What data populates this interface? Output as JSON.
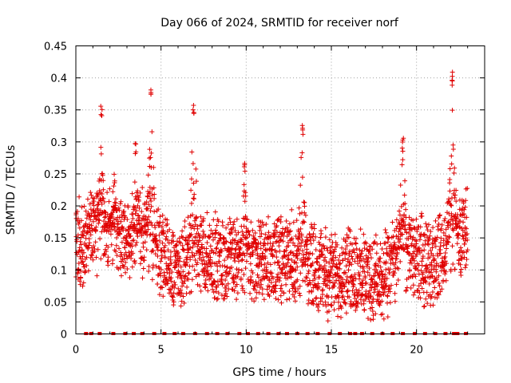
{
  "chart_data": {
    "type": "scatter",
    "title": "Day 066 of 2024, SRMTID for receiver norf",
    "xlabel": "GPS time / hours",
    "ylabel": "SRMTID / TECUs",
    "xlim": [
      0,
      24
    ],
    "ylim": [
      0,
      0.45
    ],
    "xticks": [
      0,
      5,
      10,
      15,
      20
    ],
    "xtick_labels": [
      "0",
      "5",
      "10",
      "15",
      "20"
    ],
    "yticks": [
      0,
      0.05,
      0.1,
      0.15,
      0.2,
      0.25,
      0.3,
      0.35,
      0.4,
      0.45
    ],
    "ytick_labels": [
      "0",
      "0.05",
      "0.1",
      "0.15",
      "0.2",
      "0.25",
      "0.3",
      "0.35",
      "0.4",
      "0.45"
    ],
    "grid": true,
    "marker": "+",
    "color": "#e00000",
    "x_coverage": [
      0,
      23
    ],
    "baseline_level": {
      "x": [
        0,
        1,
        2,
        3,
        4,
        5,
        6,
        7,
        8,
        9,
        10,
        11,
        12,
        13,
        14,
        15,
        16,
        17,
        18,
        19,
        20,
        21,
        22,
        23
      ],
      "y": [
        0.14,
        0.16,
        0.16,
        0.15,
        0.16,
        0.13,
        0.1,
        0.13,
        0.12,
        0.12,
        0.12,
        0.11,
        0.12,
        0.12,
        0.11,
        0.09,
        0.1,
        0.09,
        0.08,
        0.13,
        0.12,
        0.11,
        0.14,
        0.17
      ]
    },
    "spikes": [
      {
        "x": 1.5,
        "peak": 0.36
      },
      {
        "x": 2.25,
        "peak": 0.25
      },
      {
        "x": 3.5,
        "peak": 0.3
      },
      {
        "x": 4.4,
        "peak": 0.39
      },
      {
        "x": 6.9,
        "peak": 0.36
      },
      {
        "x": 9.9,
        "peak": 0.27
      },
      {
        "x": 13.3,
        "peak": 0.33
      },
      {
        "x": 19.2,
        "peak": 0.31
      },
      {
        "x": 22.1,
        "peak": 0.41
      }
    ],
    "zero_level_points": {
      "x": [
        0.6,
        0.9,
        1.4,
        2.2,
        2.9,
        3.4,
        3.9,
        4.6,
        5.2,
        5.8,
        6.3,
        7.0,
        7.7,
        8.3,
        8.9,
        9.6,
        10.1,
        10.7,
        11.3,
        11.9,
        12.4,
        13.0,
        13.6,
        14.2,
        14.9,
        15.5,
        16.1,
        16.4,
        16.8,
        17.4,
        18.0,
        18.6,
        19.2,
        19.9,
        20.5,
        21.1,
        21.7,
        22.2,
        22.4,
        22.9
      ],
      "y": [
        0,
        0,
        0,
        0,
        0,
        0,
        0,
        0,
        0,
        0,
        0,
        0,
        0,
        0,
        0,
        0,
        0,
        0,
        0,
        0,
        0,
        0,
        0,
        0,
        0,
        0,
        0,
        0,
        0,
        0,
        0,
        0,
        0,
        0,
        0,
        0,
        0,
        0,
        0,
        0
      ]
    }
  }
}
